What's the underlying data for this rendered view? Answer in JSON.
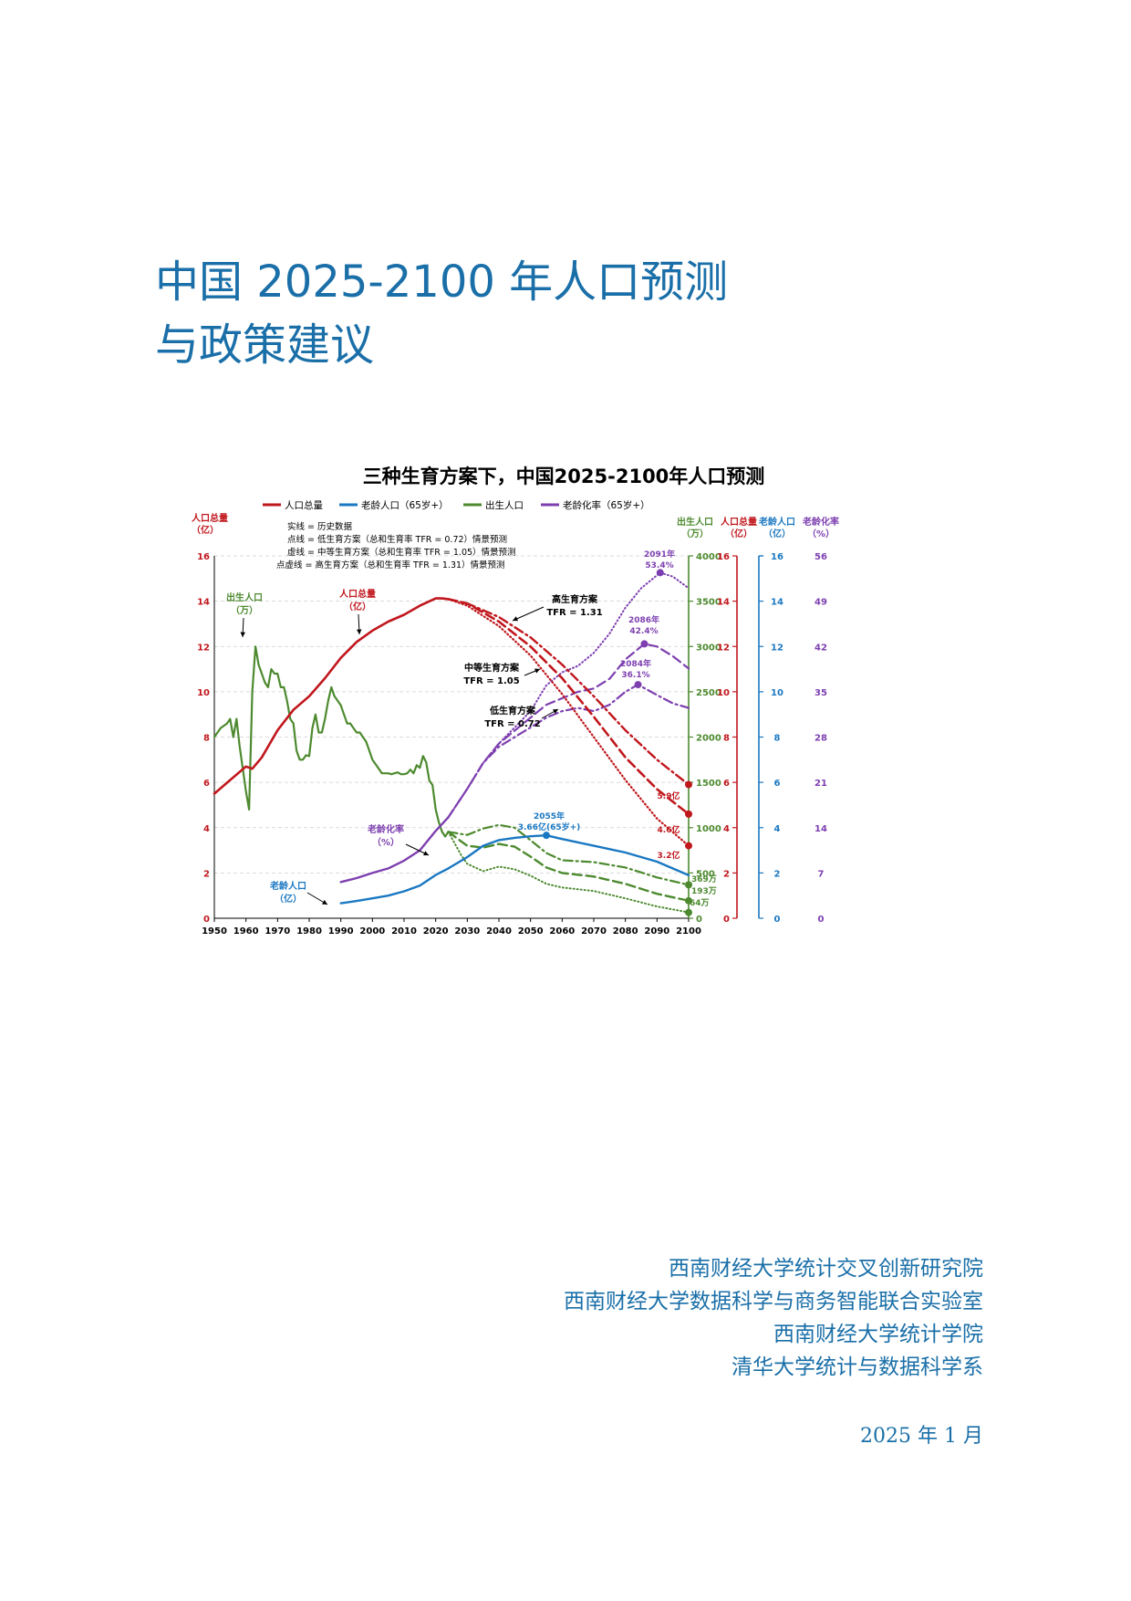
{
  "document": {
    "title_line1": "中国 2025-2100 年人口预测",
    "title_line2": "与政策建议",
    "institutions": [
      "西南财经大学统计交叉创新研究院",
      "西南财经大学数据科学与商务智能联合实验室",
      "西南财经大学统计学院",
      "清华大学统计与数据科学系"
    ],
    "date": "2025 年 1 月"
  },
  "chart_data": {
    "type": "line",
    "title": "三种生育方案下，中国2025-2100年人口预测",
    "legend": [
      {
        "name": "人口总量",
        "color": "#c0171d"
      },
      {
        "name": "老龄人口（65岁+）",
        "color": "#1a78c2"
      },
      {
        "name": "出生人口",
        "color": "#4d8a2f"
      },
      {
        "name": "老龄化率（65岁+）",
        "color": "#7d3fb0"
      }
    ],
    "line_style_notes": [
      "实线 = 历史数据",
      "点线 = 低生育方案（总和生育率 TFR = 0.72）情景预测",
      "虚线 = 中等生育方案（总和生育率 TFR = 1.05）情景预测",
      "点虚线 = 高生育方案（总和生育率 TFR = 1.31）情景预测"
    ],
    "x_ticks": [
      1950,
      1960,
      1970,
      1980,
      1990,
      2000,
      2010,
      2020,
      2030,
      2040,
      2050,
      2060,
      2070,
      2080,
      2090,
      2100
    ],
    "xlim": [
      1950,
      2100
    ],
    "axes": {
      "pop": {
        "label1": "人口总量",
        "label2": "（亿）",
        "ticks": [
          0,
          2,
          4,
          6,
          8,
          10,
          12,
          14,
          16
        ],
        "ylim": [
          0,
          16
        ],
        "color": "#c0171d"
      },
      "births": {
        "label1": "出生人口",
        "label2": "（万）",
        "ticks": [
          0,
          500,
          1000,
          1500,
          2000,
          2500,
          3000,
          3500,
          4000
        ],
        "ylim": [
          0,
          4000
        ],
        "color": "#4d8a2f"
      },
      "elderly": {
        "label1": "老龄人口",
        "label2": "（亿）",
        "ticks": [
          0,
          2,
          4,
          6,
          8,
          10,
          12,
          14,
          16
        ],
        "ylim": [
          0,
          16
        ],
        "color": "#1a78c2"
      },
      "ratio": {
        "label1": "老龄化率",
        "label2": "（%）",
        "ticks": [
          0,
          7,
          14,
          21,
          28,
          35,
          42,
          49,
          56
        ],
        "ylim": [
          0,
          56
        ],
        "color": "#7d3fb0"
      }
    },
    "series": {
      "pop_hist": {
        "x": [
          1950,
          1955,
          1960,
          1962,
          1965,
          1970,
          1975,
          1980,
          1985,
          1990,
          1995,
          2000,
          2005,
          2010,
          2015,
          2020,
          2022,
          2024
        ],
        "y": [
          5.5,
          6.1,
          6.7,
          6.6,
          7.1,
          8.3,
          9.2,
          9.8,
          10.6,
          11.5,
          12.2,
          12.7,
          13.1,
          13.4,
          13.8,
          14.12,
          14.12,
          14.09
        ]
      },
      "pop_low": {
        "x": [
          2024,
          2030,
          2040,
          2050,
          2060,
          2070,
          2080,
          2090,
          2100
        ],
        "y": [
          14.09,
          13.8,
          12.9,
          11.6,
          9.9,
          8.0,
          6.1,
          4.4,
          3.2
        ]
      },
      "pop_mid": {
        "x": [
          2024,
          2030,
          2040,
          2050,
          2060,
          2070,
          2080,
          2090,
          2100
        ],
        "y": [
          14.09,
          13.9,
          13.1,
          12.0,
          10.6,
          8.9,
          7.1,
          5.7,
          4.6
        ]
      },
      "pop_high": {
        "x": [
          2024,
          2030,
          2040,
          2050,
          2060,
          2070,
          2080,
          2090,
          2100
        ],
        "y": [
          14.09,
          13.9,
          13.3,
          12.4,
          11.2,
          9.8,
          8.3,
          7.0,
          5.9
        ]
      },
      "births_hist": {
        "x": [
          1950,
          1952,
          1954,
          1955,
          1956,
          1957,
          1958,
          1959,
          1960,
          1961,
          1962,
          1963,
          1964,
          1965,
          1966,
          1967,
          1968,
          1969,
          1970,
          1971,
          1972,
          1973,
          1974,
          1975,
          1976,
          1977,
          1978,
          1979,
          1980,
          1981,
          1982,
          1983,
          1984,
          1985,
          1986,
          1987,
          1988,
          1989,
          1990,
          1991,
          1992,
          1993,
          1994,
          1995,
          1996,
          1997,
          1998,
          1999,
          2000,
          2001,
          2002,
          2003,
          2004,
          2005,
          2006,
          2007,
          2008,
          2009,
          2010,
          2011,
          2012,
          2013,
          2014,
          2015,
          2016,
          2017,
          2018,
          2019,
          2020,
          2021,
          2022,
          2023,
          2024
        ],
        "y": [
          2000,
          2100,
          2150,
          2200,
          2000,
          2200,
          1900,
          1650,
          1400,
          1200,
          2500,
          3000,
          2800,
          2700,
          2600,
          2550,
          2750,
          2700,
          2700,
          2550,
          2550,
          2400,
          2200,
          2150,
          1850,
          1750,
          1750,
          1800,
          1790,
          2100,
          2250,
          2050,
          2050,
          2200,
          2400,
          2550,
          2450,
          2400,
          2350,
          2250,
          2150,
          2150,
          2100,
          2050,
          2050,
          2000,
          1950,
          1850,
          1750,
          1700,
          1650,
          1600,
          1600,
          1600,
          1590,
          1600,
          1610,
          1590,
          1590,
          1600,
          1640,
          1600,
          1690,
          1660,
          1790,
          1720,
          1520,
          1470,
          1200,
          1060,
          956,
          902,
          954
        ]
      },
      "births_low": {
        "x": [
          2024,
          2028,
          2030,
          2035,
          2040,
          2045,
          2050,
          2055,
          2060,
          2070,
          2080,
          2090,
          2100
        ],
        "y": [
          954,
          700,
          600,
          520,
          570,
          540,
          470,
          380,
          340,
          300,
          220,
          130,
          64
        ]
      },
      "births_mid": {
        "x": [
          2024,
          2028,
          2030,
          2035,
          2040,
          2045,
          2050,
          2055,
          2060,
          2070,
          2080,
          2090,
          2100
        ],
        "y": [
          954,
          850,
          800,
          780,
          820,
          790,
          680,
          560,
          500,
          460,
          380,
          270,
          193
        ]
      },
      "births_high": {
        "x": [
          2024,
          2028,
          2030,
          2035,
          2040,
          2045,
          2050,
          2055,
          2060,
          2070,
          2080,
          2090,
          2100
        ],
        "y": [
          954,
          930,
          920,
          990,
          1030,
          1000,
          860,
          720,
          640,
          620,
          560,
          450,
          369
        ]
      },
      "elderly_hist": {
        "x": [
          1990,
          1995,
          2000,
          2005,
          2010,
          2015,
          2020,
          2024
        ],
        "y": [
          0.66,
          0.76,
          0.88,
          1.0,
          1.19,
          1.44,
          1.91,
          2.2
        ]
      },
      "elderly_proj": {
        "x": [
          2024,
          2030,
          2035,
          2040,
          2045,
          2050,
          2055,
          2060,
          2070,
          2080,
          2090,
          2100
        ],
        "y": [
          2.2,
          2.7,
          3.2,
          3.45,
          3.55,
          3.62,
          3.66,
          3.5,
          3.2,
          2.9,
          2.5,
          1.9
        ]
      },
      "ratio_hist": {
        "x": [
          1990,
          1995,
          2000,
          2005,
          2010,
          2015,
          2020,
          2024
        ],
        "y": [
          5.6,
          6.2,
          7.0,
          7.7,
          8.9,
          10.5,
          13.5,
          15.6
        ]
      },
      "ratio_low": {
        "x": [
          2024,
          2030,
          2035,
          2040,
          2045,
          2050,
          2055,
          2060,
          2065,
          2070,
          2075,
          2080,
          2085,
          2091,
          2095,
          2100
        ],
        "y": [
          15.6,
          20,
          24,
          27,
          29.5,
          32,
          36,
          38,
          39,
          41,
          44,
          48,
          51,
          53.4,
          52.8,
          51
        ]
      },
      "ratio_mid": {
        "x": [
          2024,
          2030,
          2035,
          2040,
          2045,
          2050,
          2055,
          2060,
          2065,
          2070,
          2075,
          2080,
          2086,
          2090,
          2095,
          2100
        ],
        "y": [
          15.6,
          20,
          24,
          27,
          29,
          31,
          33,
          34,
          35,
          35.5,
          37,
          40,
          42.4,
          42,
          40.5,
          38.6
        ]
      },
      "ratio_high": {
        "x": [
          2024,
          2030,
          2035,
          2040,
          2045,
          2050,
          2055,
          2060,
          2065,
          2070,
          2075,
          2080,
          2084,
          2090,
          2095,
          2100
        ],
        "y": [
          15.6,
          20,
          24,
          26.5,
          28,
          29.5,
          31,
          32,
          32.5,
          32,
          33,
          35,
          36.1,
          34.5,
          33.2,
          32.5
        ]
      }
    },
    "annotations": {
      "births_label": [
        "出生人口",
        "（万）"
      ],
      "pop_label": [
        "人口总量",
        "（亿）"
      ],
      "ratio_label": [
        "老龄化率",
        "（%）"
      ],
      "elderly_label": [
        "老龄人口",
        "（亿）"
      ],
      "high_plan": [
        "高生育方案",
        "TFR = 1.31"
      ],
      "mid_plan": [
        "中等生育方案",
        "TFR = 1.05"
      ],
      "low_plan": [
        "低生育方案",
        "TFR = 0.72"
      ],
      "peak_2091": [
        "2091年",
        "53.4%"
      ],
      "peak_2086": [
        "2086年",
        "42.4%"
      ],
      "peak_2084": [
        "2084年",
        "36.1%"
      ],
      "peak_2055": [
        "2055年",
        "3.66亿(65岁+)"
      ],
      "pop_high_end": "5.9亿",
      "pop_mid_end": "4.6亿",
      "pop_low_end": "3.2亿",
      "births_high_end": "369万",
      "births_mid_end": "193万",
      "births_low_end": "64万"
    }
  }
}
